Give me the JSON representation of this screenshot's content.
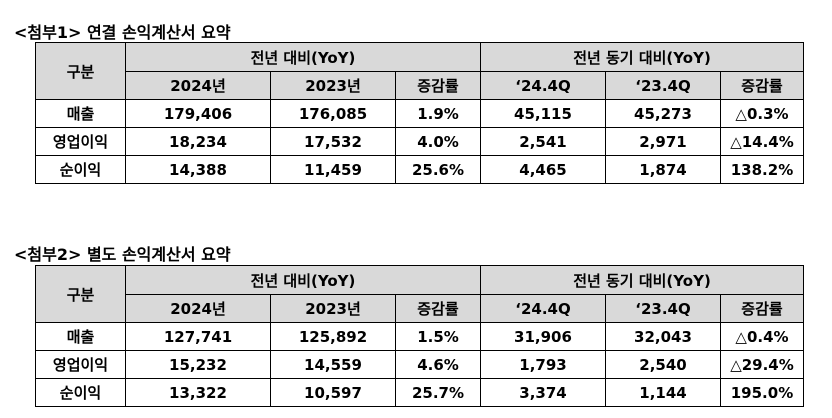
{
  "tables": [
    {
      "title": "<첨부1> 연결 손익계산서 요약",
      "header": {
        "label": "구분",
        "groups": [
          "전년 대비(YoY)",
          "전년 동기 대비(YoY)"
        ],
        "columns": [
          "2024년",
          "2023년",
          "증감률",
          "‘24.4Q",
          "‘23.4Q",
          "증감률"
        ]
      },
      "rows": [
        [
          "매출",
          "179,406",
          "176,085",
          "1.9%",
          "45,115",
          "45,273",
          "△0.3%"
        ],
        [
          "영업이익",
          "18,234",
          "17,532",
          "4.0%",
          "2,541",
          "2,971",
          "△14.4%"
        ],
        [
          "순이익",
          "14,388",
          "11,459",
          "25.6%",
          "4,465",
          "1,874",
          "138.2%"
        ]
      ]
    },
    {
      "title": "<첨부2> 별도 손익계산서 요약",
      "header": {
        "label": "구분",
        "groups": [
          "전년 대비(YoY)",
          "전년 동기 대비(YoY)"
        ],
        "columns": [
          "2024년",
          "2023년",
          "증감률",
          "‘24.4Q",
          "‘23.4Q",
          "증감률"
        ]
      },
      "rows": [
        [
          "매출",
          "127,741",
          "125,892",
          "1.5%",
          "31,906",
          "32,043",
          "△0.4%"
        ],
        [
          "영업이익",
          "15,232",
          "14,559",
          "4.6%",
          "1,793",
          "2,540",
          "△29.4%"
        ],
        [
          "순이익",
          "13,322",
          "10,597",
          "25.7%",
          "3,374",
          "1,144",
          "195.0%"
        ]
      ]
    }
  ]
}
